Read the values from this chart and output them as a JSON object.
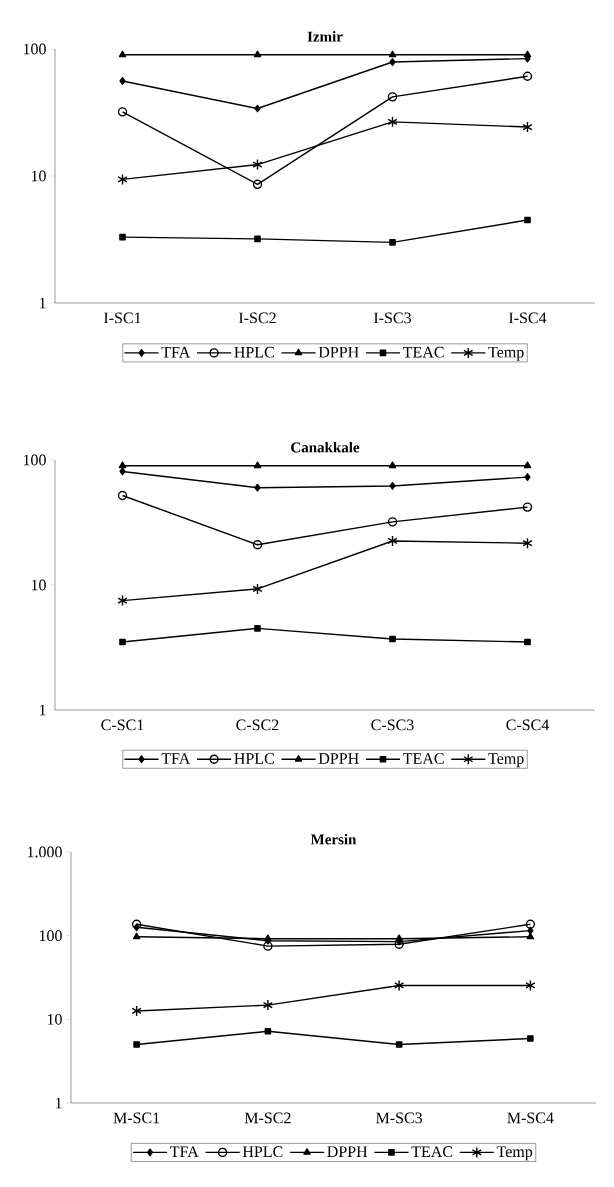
{
  "chart_data": [
    {
      "type": "line",
      "title": "Izmir",
      "categories": [
        "I-SC1",
        "I-SC2",
        "I-SC3",
        "I-SC4"
      ],
      "log": "y",
      "ylim": [
        1,
        100
      ],
      "yticks": [
        1,
        10,
        100
      ],
      "legend": "bottom",
      "series": [
        {
          "name": "TFA",
          "color": "#000000",
          "marker": "diamond",
          "values": [
            56,
            34,
            79,
            84
          ]
        },
        {
          "name": "HPLC",
          "color": "#000000",
          "marker": "circle",
          "values": [
            32,
            8.6,
            42,
            61
          ]
        },
        {
          "name": "DPPH",
          "color": "#000000",
          "marker": "triangle",
          "values": [
            90,
            90,
            90,
            90
          ]
        },
        {
          "name": "TEAC",
          "color": "#000000",
          "marker": "square",
          "values": [
            3.3,
            3.2,
            3.0,
            4.5
          ]
        },
        {
          "name": "Temp",
          "color": "#000000",
          "marker": "cross",
          "values": [
            9.4,
            12.3,
            26.7,
            24.3
          ]
        }
      ]
    },
    {
      "type": "line",
      "title": "Canakkale",
      "categories": [
        "C-SC1",
        "C-SC2",
        "C-SC3",
        "C-SC4"
      ],
      "log": "y",
      "ylim": [
        1,
        100
      ],
      "yticks": [
        1,
        10,
        100
      ],
      "legend": "bottom",
      "series": [
        {
          "name": "TFA",
          "color": "#000000",
          "marker": "diamond",
          "values": [
            81,
            60,
            62,
            73
          ]
        },
        {
          "name": "HPLC",
          "color": "#000000",
          "marker": "circle",
          "values": [
            52,
            21,
            32,
            42
          ]
        },
        {
          "name": "DPPH",
          "color": "#000000",
          "marker": "triangle",
          "values": [
            90,
            90,
            90,
            90
          ]
        },
        {
          "name": "TEAC",
          "color": "#000000",
          "marker": "square",
          "values": [
            3.5,
            4.5,
            3.7,
            3.5
          ]
        },
        {
          "name": "Temp",
          "color": "#000000",
          "marker": "cross",
          "values": [
            7.5,
            9.3,
            22.5,
            21.6
          ]
        }
      ]
    },
    {
      "type": "line",
      "title": "Mersin",
      "categories": [
        "M-SC1",
        "M-SC2",
        "M-SC3",
        "M-SC4"
      ],
      "log": "y",
      "ylim": [
        1,
        1000
      ],
      "yticks": [
        1,
        10,
        100,
        {
          "value": 1000,
          "label": "1.000"
        }
      ],
      "legend": "bottom",
      "series": [
        {
          "name": "TFA",
          "color": "#000000",
          "marker": "diamond",
          "values": [
            126,
            87,
            85,
            115
          ]
        },
        {
          "name": "HPLC",
          "color": "#000000",
          "marker": "circle",
          "values": [
            137,
            75,
            79,
            137
          ]
        },
        {
          "name": "DPPH",
          "color": "#000000",
          "marker": "triangle",
          "values": [
            97,
            92,
            92,
            97
          ]
        },
        {
          "name": "TEAC",
          "color": "#000000",
          "marker": "square",
          "values": [
            5.0,
            7.2,
            5.0,
            5.9
          ]
        },
        {
          "name": "Temp",
          "color": "#000000",
          "marker": "cross",
          "values": [
            12.6,
            14.8,
            25.4,
            25.4
          ]
        }
      ]
    }
  ]
}
